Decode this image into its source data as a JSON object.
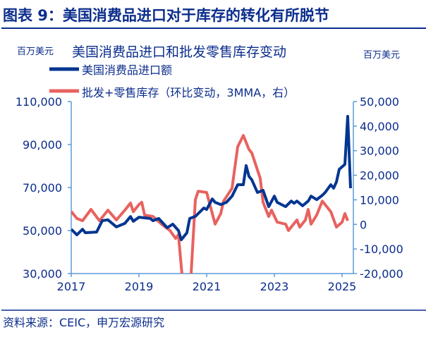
{
  "header": {
    "title": "图表 9：美国消费品进口对于库存的转化有所脱节"
  },
  "footer": {
    "source": "资料来源：CEIC，申万宏源研究"
  },
  "colors": {
    "navy": "#003591",
    "red": "#E8625F",
    "axis": "#5B9BD5",
    "title": "#0B2D8C"
  },
  "chart_data": {
    "type": "line",
    "title": "美国消费品进口和批发零售库存变动",
    "ylabel_left": "百万美元",
    "ylabel_right": "百万美元",
    "ylim_left": [
      30000,
      110000
    ],
    "ylim_right": [
      -20000,
      50000
    ],
    "yticks_left": [
      "110,000",
      "90,000",
      "70,000",
      "50,000",
      "30,000"
    ],
    "yticks_left_values": [
      110000,
      90000,
      70000,
      50000,
      30000
    ],
    "yticks_right": [
      "50,000",
      "40,000",
      "30,000",
      "20,000",
      "10,000",
      "0",
      "-10,000",
      "-20,000"
    ],
    "yticks_right_values": [
      50000,
      40000,
      30000,
      20000,
      10000,
      0,
      -10000,
      -20000
    ],
    "xticks": [
      "2017",
      "2019",
      "2021",
      "2023",
      "2025"
    ],
    "grid": false,
    "legend_position": "top-left",
    "series": [
      {
        "name": "美国消费品进口额",
        "axis": "left",
        "color": "#003591",
        "points": [
          [
            "2017-01",
            50600
          ],
          [
            "2017-03",
            48000
          ],
          [
            "2017-05",
            50600
          ],
          [
            "2017-06",
            49000
          ],
          [
            "2017-10",
            49300
          ],
          [
            "2017-12",
            54600
          ],
          [
            "2018-02",
            55000
          ],
          [
            "2018-05",
            51700
          ],
          [
            "2018-08",
            53300
          ],
          [
            "2018-10",
            56500
          ],
          [
            "2018-11",
            54300
          ],
          [
            "2019-01",
            56200
          ],
          [
            "2019-05",
            55600
          ],
          [
            "2019-06",
            54600
          ],
          [
            "2019-08",
            55600
          ],
          [
            "2019-11",
            51300
          ],
          [
            "2020-01",
            53000
          ],
          [
            "2020-03",
            50000
          ],
          [
            "2020-04",
            45700
          ],
          [
            "2020-06",
            49000
          ],
          [
            "2020-07",
            55600
          ],
          [
            "2020-09",
            56600
          ],
          [
            "2020-12",
            60500
          ],
          [
            "2021-01",
            59800
          ],
          [
            "2021-03",
            64700
          ],
          [
            "2021-04",
            63100
          ],
          [
            "2021-06",
            62100
          ],
          [
            "2021-08",
            63100
          ],
          [
            "2021-10",
            66000
          ],
          [
            "2021-12",
            71300
          ],
          [
            "2022-02",
            71300
          ],
          [
            "2022-03",
            80200
          ],
          [
            "2022-04",
            75200
          ],
          [
            "2022-05",
            73600
          ],
          [
            "2022-07",
            67700
          ],
          [
            "2022-09",
            68700
          ],
          [
            "2022-11",
            61100
          ],
          [
            "2023-01",
            66000
          ],
          [
            "2023-02",
            63100
          ],
          [
            "2023-05",
            61100
          ],
          [
            "2023-07",
            63700
          ],
          [
            "2023-08",
            62700
          ],
          [
            "2023-09",
            63700
          ],
          [
            "2023-11",
            61500
          ],
          [
            "2024-01",
            63700
          ],
          [
            "2024-02",
            66000
          ],
          [
            "2024-04",
            64400
          ],
          [
            "2024-06",
            66400
          ],
          [
            "2024-07",
            67700
          ],
          [
            "2024-09",
            71300
          ],
          [
            "2024-10",
            69700
          ],
          [
            "2024-11",
            72600
          ],
          [
            "2024-12",
            78500
          ],
          [
            "2025-02",
            80800
          ],
          [
            "2025-03",
            103100
          ],
          [
            "2025-04",
            69700
          ]
        ]
      },
      {
        "name": "批发+零售库存（环比变动，3MMA，右）",
        "axis": "right",
        "color": "#E8625F",
        "points": [
          [
            "2017-01",
            5250
          ],
          [
            "2017-03",
            2400
          ],
          [
            "2017-05",
            1500
          ],
          [
            "2017-08",
            6100
          ],
          [
            "2017-11",
            1500
          ],
          [
            "2018-02",
            5800
          ],
          [
            "2018-05",
            1800
          ],
          [
            "2018-08",
            5800
          ],
          [
            "2018-10",
            8700
          ],
          [
            "2018-11",
            5200
          ],
          [
            "2019-01",
            8100
          ],
          [
            "2019-02",
            9000
          ],
          [
            "2019-03",
            3800
          ],
          [
            "2019-06",
            3200
          ],
          [
            "2019-09",
            100
          ],
          [
            "2019-12",
            -2500
          ],
          [
            "2020-02",
            -5700
          ],
          [
            "2020-03",
            -4200
          ],
          [
            "2020-05",
            -30000
          ],
          [
            "2020-07",
            -30000
          ],
          [
            "2020-09",
            10100
          ],
          [
            "2020-10",
            13500
          ],
          [
            "2021-01",
            13000
          ],
          [
            "2021-04",
            100
          ],
          [
            "2021-06",
            4400
          ],
          [
            "2021-07",
            9500
          ],
          [
            "2021-10",
            14700
          ],
          [
            "2021-12",
            31600
          ],
          [
            "2022-02",
            36200
          ],
          [
            "2022-04",
            30500
          ],
          [
            "2022-05",
            29100
          ],
          [
            "2022-08",
            18700
          ],
          [
            "2022-09",
            9000
          ],
          [
            "2022-11",
            3200
          ],
          [
            "2022-12",
            5800
          ],
          [
            "2023-02",
            900
          ],
          [
            "2023-05",
            100
          ],
          [
            "2023-06",
            -2500
          ],
          [
            "2023-09",
            1800
          ],
          [
            "2023-10",
            -1100
          ],
          [
            "2023-12",
            1800
          ],
          [
            "2024-01",
            6100
          ],
          [
            "2024-02",
            100
          ],
          [
            "2024-04",
            3800
          ],
          [
            "2024-06",
            9500
          ],
          [
            "2024-09",
            5200
          ],
          [
            "2024-11",
            -1100
          ],
          [
            "2025-01",
            900
          ],
          [
            "2025-02",
            4400
          ],
          [
            "2025-03",
            1500
          ]
        ]
      }
    ]
  }
}
